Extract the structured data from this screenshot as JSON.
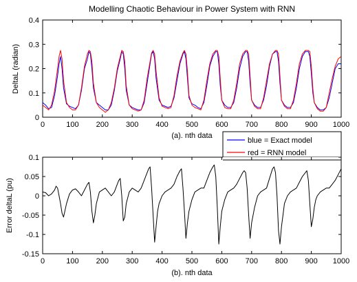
{
  "chart_data": [
    {
      "type": "line",
      "title": "Modelling Chaotic Behaviour in Power System with RNN",
      "xlabel": "(a).  nth data",
      "ylabel": "DeltaL (radian)",
      "xlim": [
        0,
        1000
      ],
      "ylim": [
        0,
        0.4
      ],
      "x_ticks": [
        "0",
        "100",
        "200",
        "300",
        "400",
        "500",
        "600",
        "700",
        "800",
        "900",
        "1000"
      ],
      "y_ticks": [
        "0",
        "0.1",
        "0.2",
        "0.3",
        "0.4"
      ],
      "grid": false,
      "legend_position": "below-right, outside plot",
      "series": [
        {
          "name": "blue = Exact model",
          "color": "#0000ff",
          "x": [
            0,
            10,
            20,
            30,
            40,
            50,
            55,
            60,
            65,
            70,
            80,
            90,
            100,
            110,
            120,
            130,
            140,
            150,
            155,
            160,
            165,
            170,
            180,
            190,
            200,
            210,
            220,
            230,
            240,
            250,
            260,
            265,
            270,
            275,
            280,
            290,
            300,
            310,
            320,
            330,
            340,
            350,
            360,
            365,
            370,
            375,
            380,
            390,
            400,
            410,
            420,
            430,
            440,
            450,
            460,
            470,
            475,
            480,
            485,
            490,
            500,
            510,
            520,
            530,
            540,
            550,
            560,
            570,
            580,
            585,
            590,
            595,
            600,
            610,
            620,
            630,
            640,
            650,
            660,
            670,
            680,
            685,
            690,
            695,
            700,
            710,
            720,
            730,
            740,
            750,
            760,
            770,
            780,
            785,
            790,
            795,
            800,
            810,
            820,
            830,
            840,
            850,
            860,
            870,
            880,
            890,
            895,
            900,
            905,
            910,
            920,
            930,
            940,
            950,
            960,
            970,
            980,
            990,
            1000
          ],
          "values": [
            0.06,
            0.05,
            0.035,
            0.04,
            0.09,
            0.17,
            0.22,
            0.25,
            0.2,
            0.12,
            0.055,
            0.045,
            0.04,
            0.035,
            0.05,
            0.11,
            0.2,
            0.24,
            0.27,
            0.26,
            0.2,
            0.12,
            0.06,
            0.05,
            0.04,
            0.03,
            0.03,
            0.05,
            0.11,
            0.19,
            0.24,
            0.27,
            0.26,
            0.2,
            0.11,
            0.05,
            0.04,
            0.035,
            0.03,
            0.03,
            0.06,
            0.14,
            0.22,
            0.26,
            0.27,
            0.24,
            0.16,
            0.07,
            0.05,
            0.045,
            0.04,
            0.045,
            0.08,
            0.15,
            0.22,
            0.26,
            0.27,
            0.24,
            0.16,
            0.08,
            0.055,
            0.05,
            0.04,
            0.035,
            0.06,
            0.13,
            0.21,
            0.25,
            0.27,
            0.27,
            0.22,
            0.13,
            0.07,
            0.05,
            0.04,
            0.04,
            0.06,
            0.12,
            0.2,
            0.25,
            0.27,
            0.27,
            0.23,
            0.14,
            0.07,
            0.05,
            0.04,
            0.04,
            0.07,
            0.13,
            0.21,
            0.26,
            0.27,
            0.27,
            0.23,
            0.14,
            0.07,
            0.05,
            0.04,
            0.04,
            0.06,
            0.12,
            0.2,
            0.25,
            0.27,
            0.27,
            0.25,
            0.18,
            0.1,
            0.06,
            0.04,
            0.03,
            0.03,
            0.04,
            0.08,
            0.14,
            0.2,
            0.22,
            0.22
          ]
        },
        {
          "name": "red = RNN model",
          "color": "#ff0000",
          "x": [
            0,
            10,
            20,
            30,
            40,
            50,
            55,
            60,
            65,
            70,
            80,
            90,
            100,
            110,
            120,
            130,
            140,
            150,
            155,
            160,
            165,
            170,
            180,
            190,
            200,
            210,
            220,
            230,
            240,
            250,
            260,
            265,
            270,
            275,
            280,
            290,
            300,
            310,
            320,
            330,
            340,
            350,
            360,
            365,
            370,
            375,
            380,
            390,
            400,
            410,
            420,
            430,
            440,
            450,
            460,
            470,
            475,
            480,
            485,
            490,
            500,
            510,
            520,
            530,
            540,
            550,
            560,
            570,
            580,
            585,
            590,
            595,
            600,
            610,
            620,
            630,
            640,
            650,
            660,
            670,
            680,
            685,
            690,
            695,
            700,
            710,
            720,
            730,
            740,
            750,
            760,
            770,
            780,
            785,
            790,
            795,
            800,
            810,
            820,
            830,
            840,
            850,
            860,
            870,
            880,
            890,
            895,
            900,
            905,
            910,
            920,
            930,
            940,
            950,
            960,
            970,
            980,
            990,
            1000
          ],
          "values": [
            0.05,
            0.04,
            0.03,
            0.05,
            0.11,
            0.2,
            0.25,
            0.275,
            0.24,
            0.15,
            0.06,
            0.04,
            0.03,
            0.03,
            0.05,
            0.12,
            0.21,
            0.26,
            0.275,
            0.27,
            0.23,
            0.14,
            0.06,
            0.04,
            0.03,
            0.02,
            0.03,
            0.06,
            0.12,
            0.2,
            0.25,
            0.275,
            0.27,
            0.23,
            0.13,
            0.05,
            0.035,
            0.03,
            0.025,
            0.03,
            0.07,
            0.16,
            0.23,
            0.265,
            0.275,
            0.26,
            0.19,
            0.08,
            0.045,
            0.04,
            0.035,
            0.04,
            0.09,
            0.17,
            0.23,
            0.265,
            0.275,
            0.26,
            0.19,
            0.09,
            0.05,
            0.04,
            0.035,
            0.03,
            0.07,
            0.15,
            0.22,
            0.26,
            0.275,
            0.275,
            0.25,
            0.16,
            0.07,
            0.04,
            0.035,
            0.035,
            0.07,
            0.14,
            0.22,
            0.26,
            0.275,
            0.275,
            0.26,
            0.17,
            0.07,
            0.045,
            0.035,
            0.035,
            0.08,
            0.15,
            0.22,
            0.26,
            0.275,
            0.275,
            0.26,
            0.17,
            0.07,
            0.045,
            0.035,
            0.035,
            0.07,
            0.14,
            0.22,
            0.26,
            0.275,
            0.275,
            0.27,
            0.21,
            0.12,
            0.06,
            0.035,
            0.025,
            0.025,
            0.04,
            0.1,
            0.16,
            0.21,
            0.24,
            0.25
          ]
        }
      ]
    },
    {
      "type": "line",
      "title": "",
      "xlabel": "(b).  nth data",
      "ylabel": "Error deltaL (pu)",
      "xlim": [
        0,
        1000
      ],
      "ylim": [
        -0.15,
        0.1
      ],
      "x_ticks": [
        "0",
        "100",
        "200",
        "300",
        "400",
        "500",
        "600",
        "700",
        "800",
        "900",
        "1000"
      ],
      "y_ticks": [
        "-0.15",
        "-0.1",
        "-0.05",
        "0",
        "0.05",
        "0.1"
      ],
      "grid": false,
      "series": [
        {
          "color": "#000000",
          "x": [
            0,
            10,
            20,
            30,
            40,
            45,
            50,
            55,
            60,
            65,
            70,
            80,
            90,
            100,
            110,
            120,
            130,
            140,
            150,
            155,
            160,
            165,
            170,
            175,
            180,
            190,
            200,
            210,
            220,
            230,
            240,
            250,
            255,
            260,
            265,
            270,
            275,
            280,
            290,
            300,
            310,
            320,
            330,
            340,
            350,
            355,
            360,
            365,
            370,
            375,
            380,
            385,
            390,
            400,
            410,
            420,
            430,
            440,
            450,
            460,
            465,
            470,
            475,
            480,
            485,
            490,
            500,
            510,
            520,
            530,
            540,
            550,
            560,
            570,
            575,
            580,
            585,
            590,
            595,
            600,
            610,
            620,
            630,
            640,
            650,
            660,
            670,
            675,
            680,
            685,
            690,
            695,
            700,
            710,
            720,
            730,
            740,
            750,
            760,
            770,
            775,
            780,
            785,
            790,
            795,
            800,
            805,
            810,
            820,
            830,
            840,
            850,
            860,
            870,
            880,
            885,
            890,
            895,
            900,
            905,
            910,
            915,
            920,
            930,
            940,
            950,
            960,
            970,
            980,
            990,
            1000
          ],
          "values": [
            0.01,
            0.008,
            0.0,
            0.005,
            0.015,
            0.025,
            0.02,
            0.0,
            -0.02,
            -0.045,
            -0.055,
            -0.02,
            0.005,
            0.015,
            0.018,
            0.01,
            0.0,
            0.015,
            0.03,
            0.035,
            0.01,
            -0.04,
            -0.07,
            -0.05,
            -0.02,
            0.01,
            0.015,
            0.02,
            0.01,
            0.0,
            0.01,
            0.03,
            0.04,
            0.045,
            0.0,
            -0.065,
            -0.055,
            -0.02,
            0.01,
            0.02,
            0.015,
            0.01,
            0.02,
            0.04,
            0.06,
            0.07,
            0.075,
            0.02,
            -0.05,
            -0.12,
            -0.08,
            -0.04,
            -0.02,
            0.0,
            0.01,
            0.015,
            0.02,
            0.03,
            0.05,
            0.065,
            0.07,
            0.02,
            -0.04,
            -0.11,
            -0.07,
            -0.04,
            -0.01,
            0.01,
            0.015,
            0.02,
            0.02,
            0.04,
            0.06,
            0.075,
            0.08,
            0.05,
            -0.03,
            -0.125,
            -0.08,
            -0.04,
            -0.01,
            0.01,
            0.015,
            0.02,
            0.03,
            0.045,
            0.06,
            0.065,
            0.06,
            0.02,
            -0.05,
            -0.11,
            -0.07,
            -0.03,
            0.0,
            0.01,
            0.015,
            0.02,
            0.045,
            0.07,
            0.075,
            0.06,
            0.0,
            -0.09,
            -0.125,
            -0.08,
            -0.05,
            -0.02,
            0.0,
            0.01,
            0.015,
            0.02,
            0.035,
            0.05,
            0.06,
            0.065,
            0.04,
            -0.02,
            -0.08,
            -0.06,
            -0.03,
            -0.01,
            0.0,
            0.01,
            0.015,
            0.02,
            0.02,
            0.03,
            0.04,
            0.055,
            0.07
          ]
        }
      ]
    }
  ]
}
